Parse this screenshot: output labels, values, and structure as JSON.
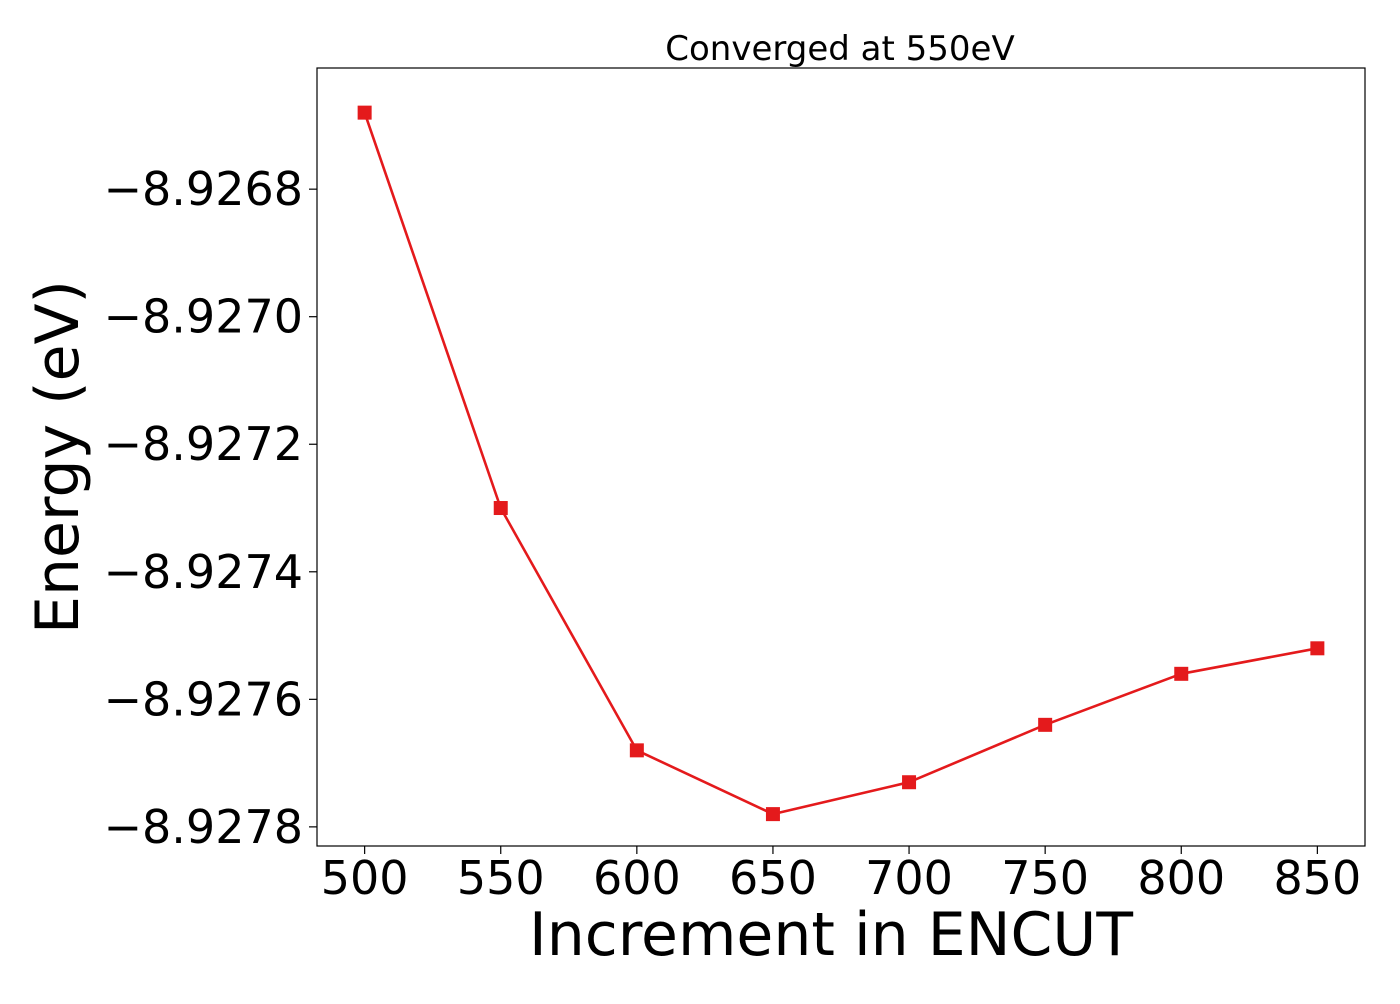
{
  "chart_data": {
    "type": "line",
    "title": "Converged at 550eV",
    "xlabel": "Increment in ENCUT",
    "ylabel": "Energy (eV)",
    "x": [
      500,
      550,
      600,
      650,
      700,
      750,
      800,
      850
    ],
    "series": [
      {
        "values": [
          -8.92668,
          -8.9273,
          -8.92768,
          -8.92778,
          -8.92773,
          -8.92764,
          -8.92756,
          -8.92752
        ],
        "color": "#e41a1c",
        "marker": "square"
      }
    ],
    "xlim": [
      482.5,
      867.5
    ],
    "ylim": [
      -8.92783,
      -8.92661
    ],
    "xticks": [
      500,
      550,
      600,
      650,
      700,
      750,
      800,
      850
    ],
    "xtick_labels": [
      "500",
      "550",
      "600",
      "650",
      "700",
      "750",
      "800",
      "850"
    ],
    "yticks": [
      -8.9268,
      -8.927,
      -8.9272,
      -8.9274,
      -8.9276,
      -8.9278
    ],
    "ytick_labels": [
      "−8.9268",
      "−8.9270",
      "−8.9272",
      "−8.9274",
      "−8.9276",
      "−8.9278"
    ],
    "grid": false,
    "legend": "none"
  }
}
